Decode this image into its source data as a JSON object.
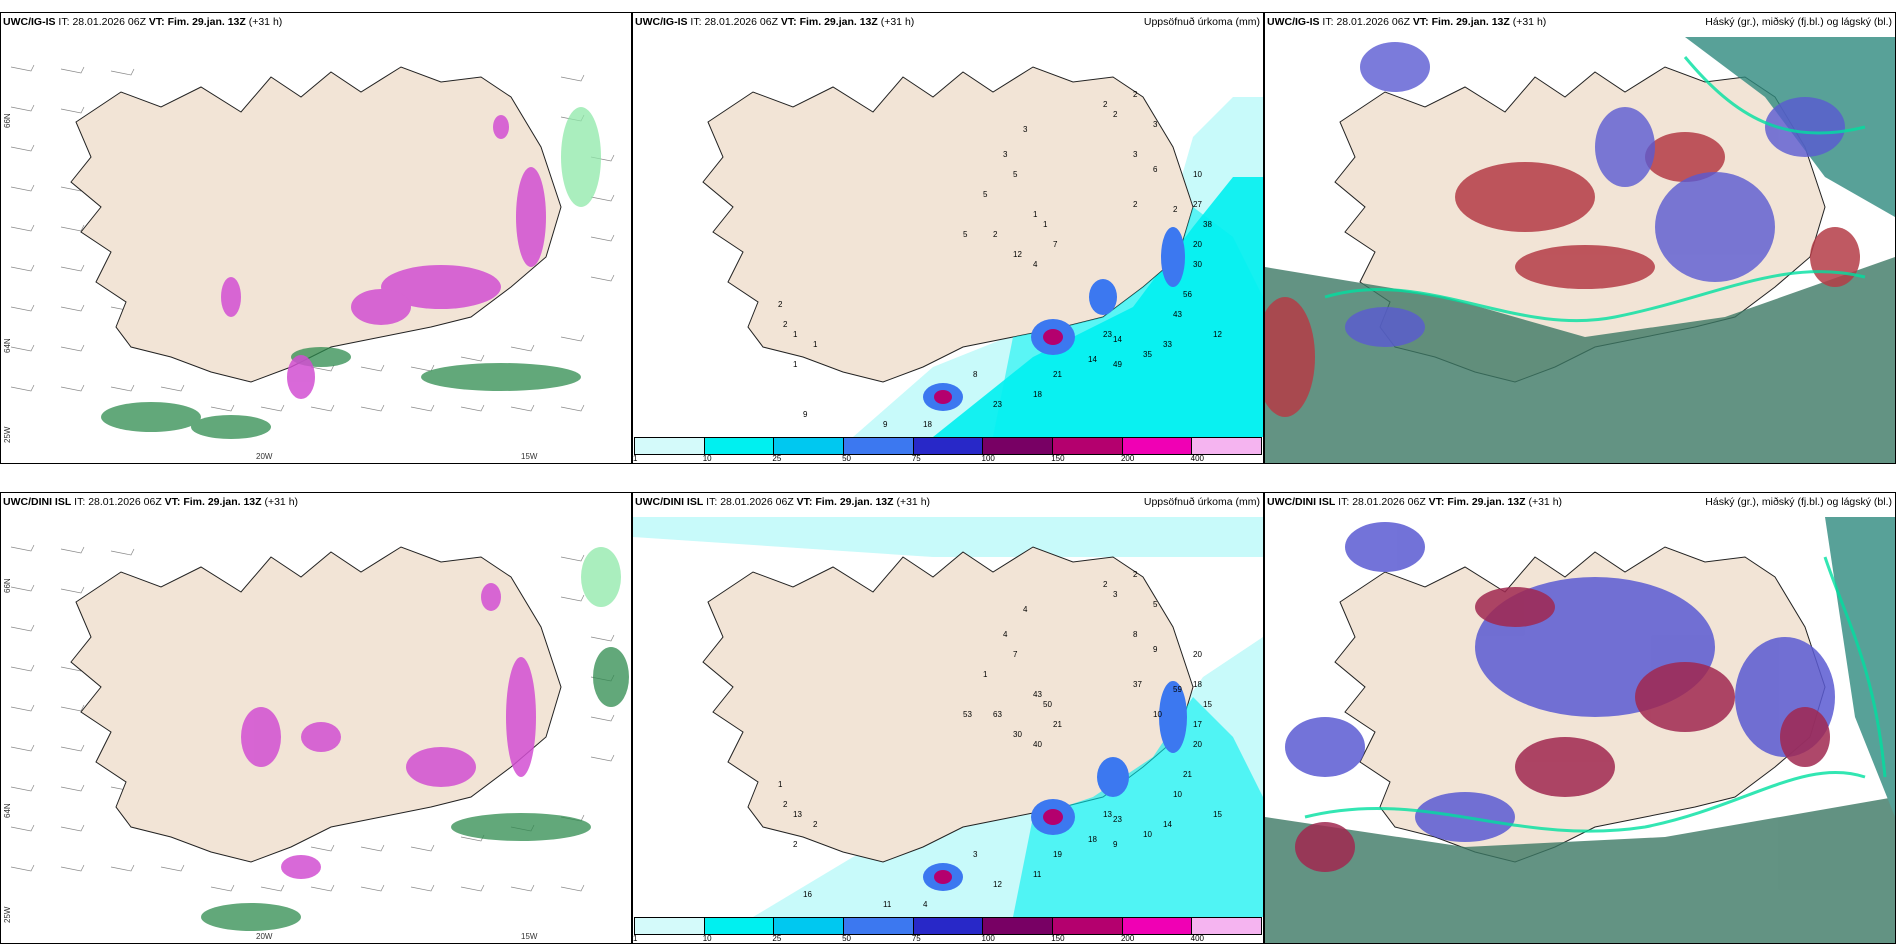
{
  "rows": [
    {
      "model": "UWC/IG-IS",
      "it_label": "IT:",
      "it_value": "28.01.2026 06Z",
      "vt_label": "VT:",
      "vt_value": "Fim. 29.jan. 13Z",
      "lead": "(+31 h)"
    },
    {
      "model": "UWC/DINI ISL",
      "it_label": "IT:",
      "it_value": "28.01.2026 06Z",
      "vt_label": "VT:",
      "vt_value": "Fim. 29.jan. 13Z",
      "lead": "(+31 h)"
    }
  ],
  "precip_title": "Uppsöfnuð úrkoma (mm)",
  "cloud_title": "Háský (gr.), miðský (fj.bl.) og lágský (bl.)",
  "colorbar": {
    "ticks": [
      "1",
      "10",
      "25",
      "50",
      "75",
      "100",
      "150",
      "200",
      "400"
    ],
    "colors": [
      "#d4fafa",
      "#00f0f0",
      "#00c8f0",
      "#3c78f0",
      "#2828c8",
      "#780064",
      "#b4006e",
      "#f000b4",
      "#f5b4f0"
    ]
  },
  "axis_labels": {
    "lon_left": "20W",
    "lon_right": "15W",
    "lat_top": "66N",
    "lat_bottom": "64N",
    "lat_low": "25W"
  },
  "precip_values_top": [
    "2",
    "2",
    "2",
    "3",
    "3",
    "3",
    "5",
    "5",
    "3",
    "6",
    "2",
    "2",
    "1",
    "1",
    "5",
    "2",
    "12",
    "4",
    "7",
    "10",
    "27",
    "38",
    "20",
    "30",
    "56",
    "43",
    "12",
    "33",
    "35",
    "49",
    "23",
    "14",
    "14",
    "21",
    "18",
    "23",
    "9",
    "9",
    "18",
    "8",
    "1",
    "1",
    "1",
    "2",
    "2"
  ],
  "precip_values_bottom": [
    "2",
    "3",
    "2",
    "5",
    "4",
    "4",
    "7",
    "1",
    "8",
    "9",
    "37",
    "59",
    "43",
    "50",
    "53",
    "63",
    "30",
    "40",
    "21",
    "20",
    "18",
    "15",
    "17",
    "20",
    "21",
    "10",
    "15",
    "14",
    "10",
    "9",
    "13",
    "18",
    "23",
    "19",
    "11",
    "12",
    "11",
    "16",
    "4",
    "3",
    "13",
    "2",
    "2",
    "2",
    "1",
    "10"
  ],
  "colors": {
    "land": "#f2e4d6",
    "sea": "#ffffff",
    "precip_light": "#c8fafa",
    "precip_cyan": "#00f0f0",
    "precip_blue": "#3c78f0",
    "precip_magenta": "#b4006e",
    "snow_magenta": "#e678e6",
    "rain_green": "#1e6e3c",
    "cloud_high": "#5a5ad2",
    "cloud_mid": "#b43c46",
    "cloud_low": "#3c7864"
  }
}
